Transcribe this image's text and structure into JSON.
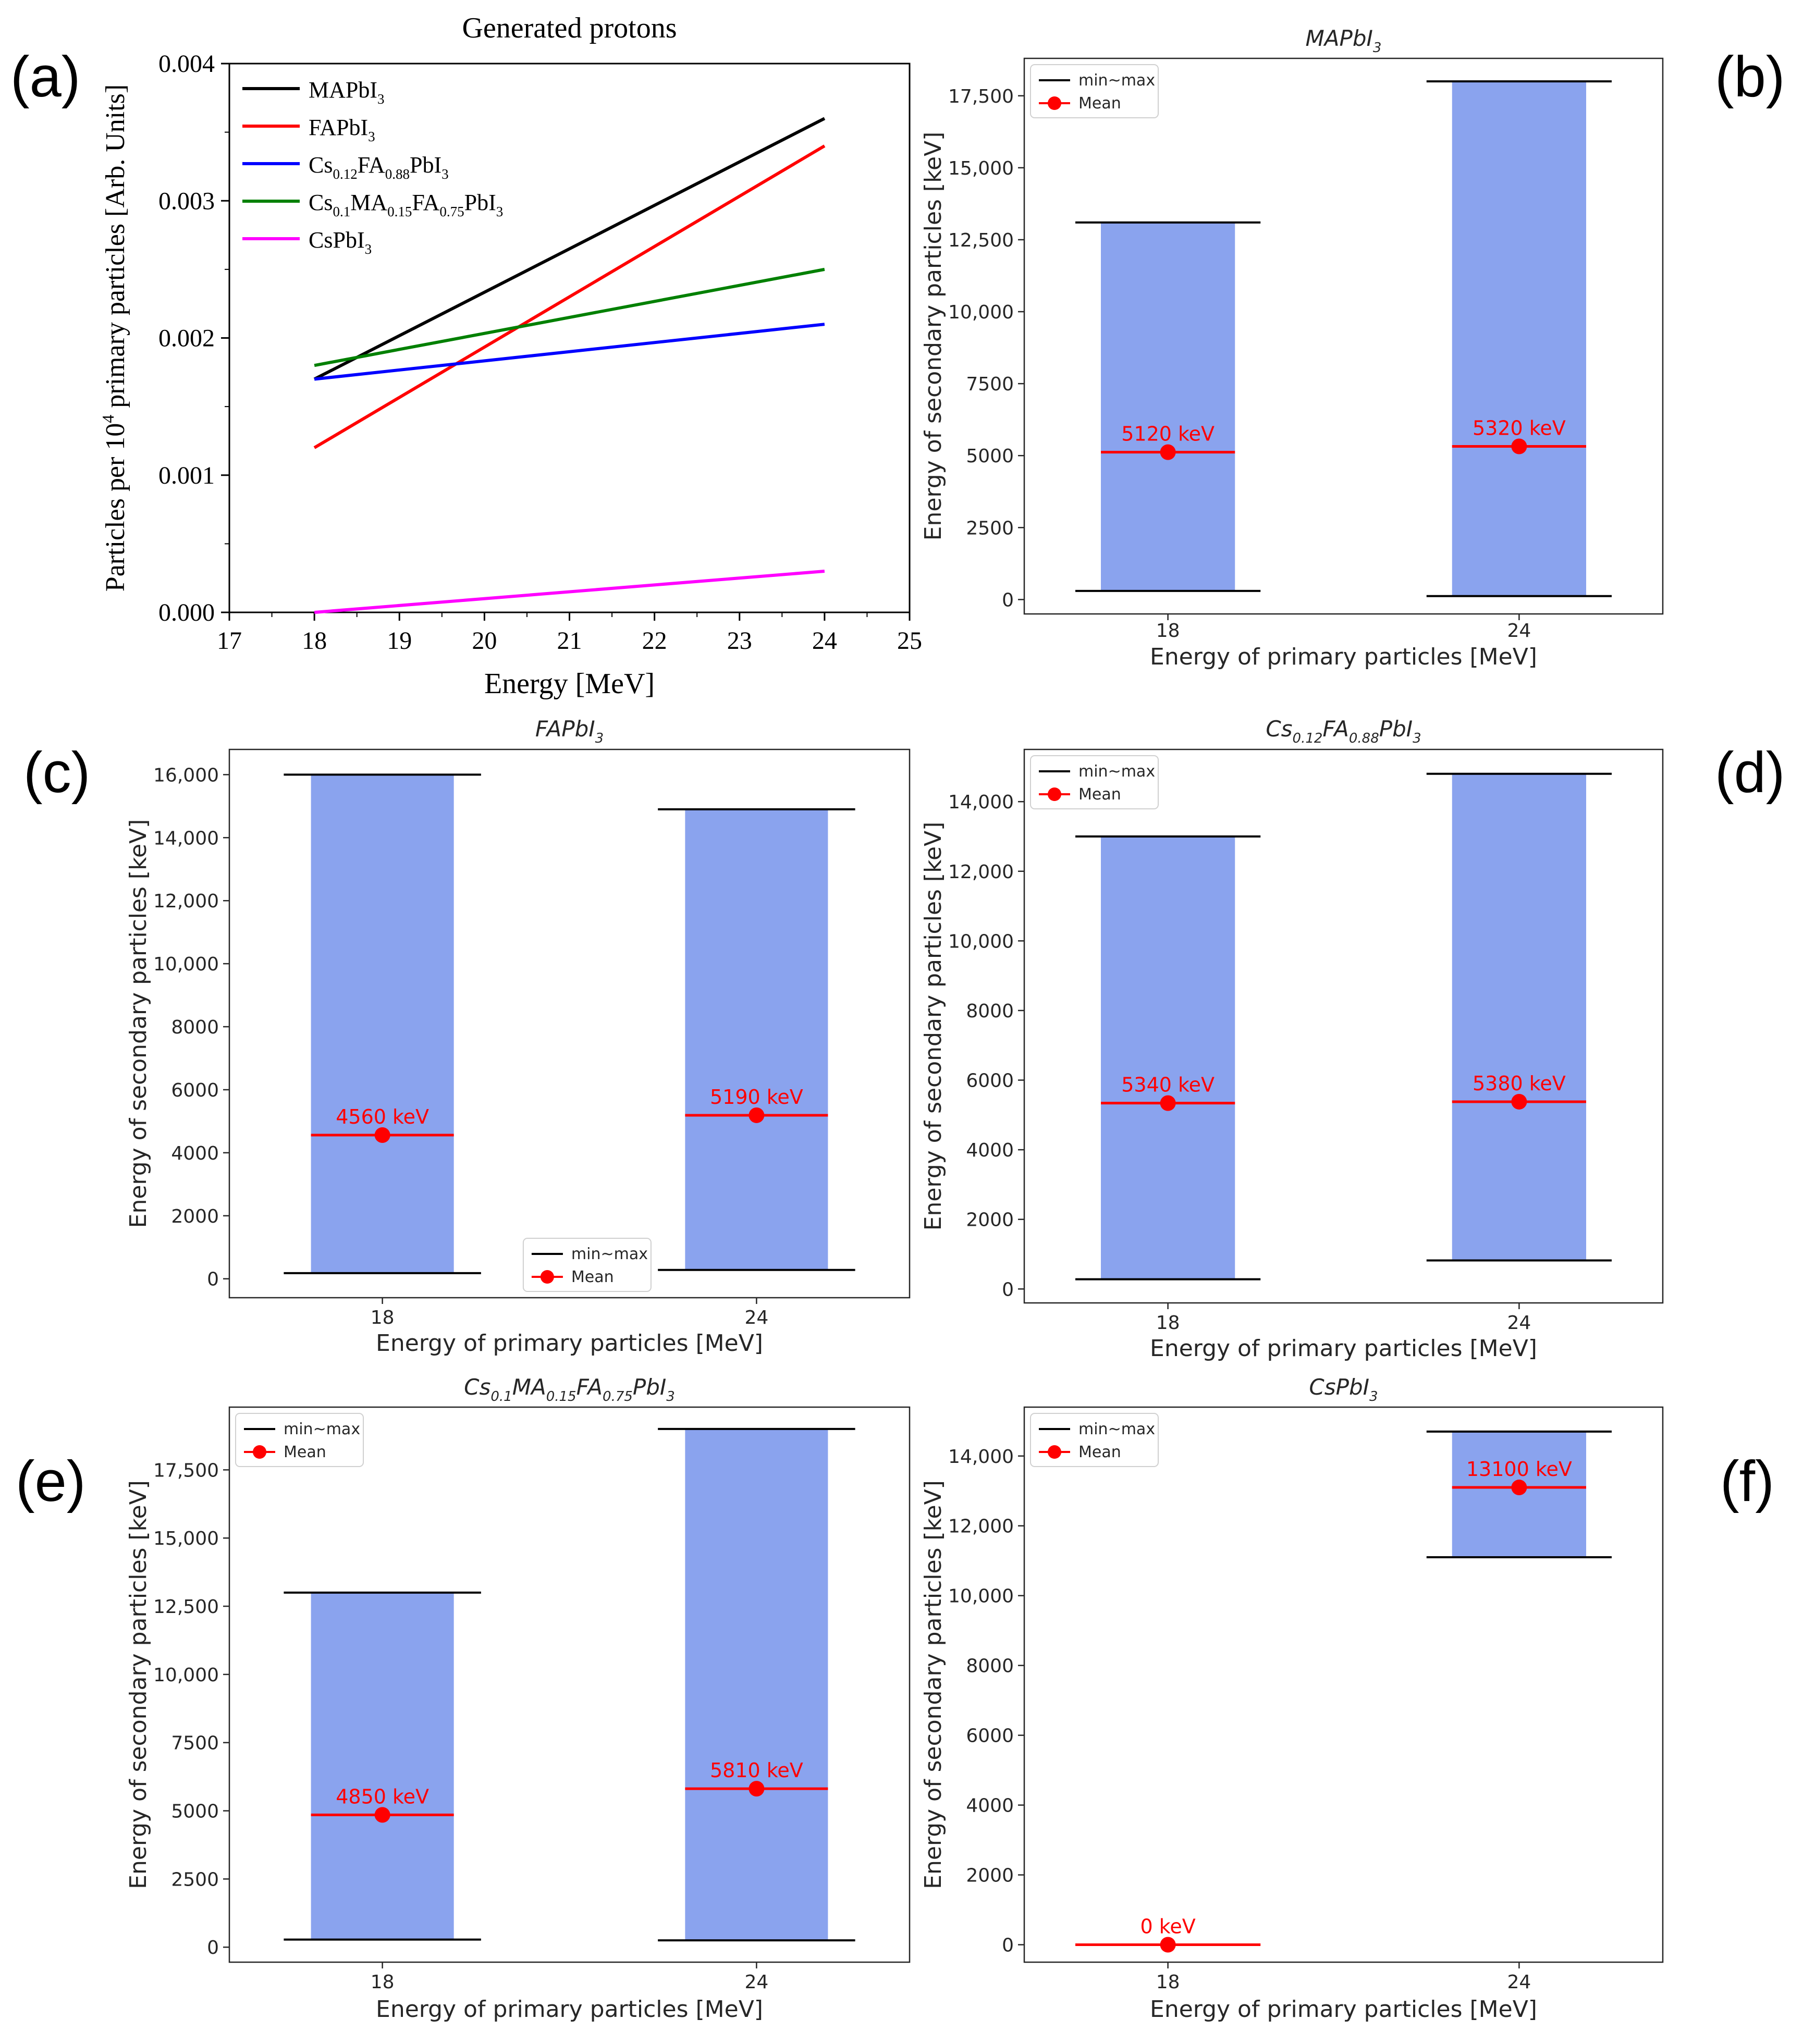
{
  "panel_letters": [
    "(a)",
    "(b)",
    "(c)",
    "(d)",
    "(e)",
    "(f)"
  ],
  "chart_data": [
    {
      "id": "a",
      "type": "line",
      "title": "Generated protons",
      "xlabel": "Energy [MeV]",
      "ylabel_parts": [
        "Particles per 10",
        "4",
        " primary particles [Arb. Units]"
      ],
      "xlim": [
        17,
        25
      ],
      "ylim": [
        0,
        0.004
      ],
      "xticks": [
        "17",
        "18",
        "19",
        "20",
        "21",
        "22",
        "23",
        "24",
        "25"
      ],
      "xtick_values": [
        17,
        18,
        19,
        20,
        21,
        22,
        23,
        24,
        25
      ],
      "yticks": [
        "0.000",
        "0.001",
        "0.002",
        "0.003",
        "0.004"
      ],
      "ytick_values": [
        0,
        0.001,
        0.002,
        0.003,
        0.004
      ],
      "x": [
        18,
        24
      ],
      "series": [
        {
          "name": "MAPbI3",
          "label_parts": [
            [
              "MAPbI",
              ""
            ],
            [
              "3",
              "sub"
            ]
          ],
          "color": "#000000",
          "values": [
            0.0017,
            0.0036
          ]
        },
        {
          "name": "FAPbI3",
          "label_parts": [
            [
              "FAPbI",
              ""
            ],
            [
              "3",
              "sub"
            ]
          ],
          "color": "#ff0000",
          "values": [
            0.0012,
            0.0034
          ]
        },
        {
          "name": "Cs0.12FA0.88PbI3",
          "label_parts": [
            [
              "Cs",
              ""
            ],
            [
              "0.12",
              "sub"
            ],
            [
              "FA",
              ""
            ],
            [
              "0.88",
              "sub"
            ],
            [
              "PbI",
              ""
            ],
            [
              "3",
              "sub"
            ]
          ],
          "color": "#0000ff",
          "values": [
            0.0017,
            0.0021
          ]
        },
        {
          "name": "Cs0.1MA0.15FA0.75PbI3",
          "label_parts": [
            [
              "Cs",
              ""
            ],
            [
              "0.1",
              "sub"
            ],
            [
              "MA",
              ""
            ],
            [
              "0.15",
              "sub"
            ],
            [
              "FA",
              ""
            ],
            [
              "0.75",
              "sub"
            ],
            [
              "PbI",
              ""
            ],
            [
              "3",
              "sub"
            ]
          ],
          "color": "#008000",
          "values": [
            0.0018,
            0.0025
          ]
        },
        {
          "name": "CsPbI3",
          "label_parts": [
            [
              "CsPbI",
              ""
            ],
            [
              "3",
              "sub"
            ]
          ],
          "color": "#ff00ff",
          "values": [
            0.0,
            0.0003
          ]
        }
      ]
    },
    {
      "id": "b",
      "type": "bar",
      "title_parts": [
        [
          "MAPbI",
          ""
        ],
        [
          "3",
          "sub"
        ]
      ],
      "xlabel": "Energy of primary particles [MeV]",
      "ylabel": "Energy of secondary particles [keV]",
      "categories": [
        "18",
        "24"
      ],
      "min": [
        300,
        120
      ],
      "max": [
        13100,
        18000
      ],
      "mean": [
        5120,
        5320
      ],
      "mean_labels": [
        "5120 keV",
        "5320 keV"
      ],
      "ylim": [
        -500,
        18800
      ],
      "yticks": [
        "0",
        "2500",
        "5000",
        "7500",
        "10,000",
        "12,500",
        "15,000",
        "17,500"
      ],
      "ytick_values": [
        0,
        2500,
        5000,
        7500,
        10000,
        12500,
        15000,
        17500
      ],
      "legend": {
        "minmax": "min~max",
        "mean": "Mean",
        "position": "upper left"
      }
    },
    {
      "id": "c",
      "type": "bar",
      "title_parts": [
        [
          "FAPbI",
          ""
        ],
        [
          "3",
          "sub"
        ]
      ],
      "xlabel": "Energy of primary particles [MeV]",
      "ylabel": "Energy of secondary particles [keV]",
      "categories": [
        "18",
        "24"
      ],
      "min": [
        180,
        280
      ],
      "max": [
        16000,
        14900
      ],
      "mean": [
        4560,
        5190
      ],
      "mean_labels": [
        "4560 keV",
        "5190 keV"
      ],
      "ylim": [
        -600,
        16800
      ],
      "yticks": [
        "0",
        "2000",
        "4000",
        "6000",
        "8000",
        "10,000",
        "12,000",
        "14,000",
        "16,000"
      ],
      "ytick_values": [
        0,
        2000,
        4000,
        6000,
        8000,
        10000,
        12000,
        14000,
        16000
      ],
      "legend": {
        "minmax": "min~max",
        "mean": "Mean",
        "position": "lower center"
      }
    },
    {
      "id": "d",
      "type": "bar",
      "title_parts": [
        [
          "Cs",
          ""
        ],
        [
          "0.12",
          "sub"
        ],
        [
          "FA",
          ""
        ],
        [
          "0.88",
          "sub"
        ],
        [
          "PbI",
          ""
        ],
        [
          "3",
          "sub"
        ]
      ],
      "xlabel": "Energy of primary particles [MeV]",
      "ylabel": "Energy of secondary particles [keV]",
      "categories": [
        "18",
        "24"
      ],
      "min": [
        280,
        820
      ],
      "max": [
        13000,
        14800
      ],
      "mean": [
        5340,
        5380
      ],
      "mean_labels": [
        "5340 keV",
        "5380 keV"
      ],
      "ylim": [
        -400,
        15500
      ],
      "yticks": [
        "0",
        "2000",
        "4000",
        "6000",
        "8000",
        "10,000",
        "12,000",
        "14,000"
      ],
      "ytick_values": [
        0,
        2000,
        4000,
        6000,
        8000,
        10000,
        12000,
        14000
      ],
      "legend": {
        "minmax": "min~max",
        "mean": "Mean",
        "position": "upper left"
      }
    },
    {
      "id": "e",
      "type": "bar",
      "title_parts": [
        [
          "Cs",
          ""
        ],
        [
          "0.1",
          "sub"
        ],
        [
          "MA",
          ""
        ],
        [
          "0.15",
          "sub"
        ],
        [
          "FA",
          ""
        ],
        [
          "0.75",
          "sub"
        ],
        [
          "PbI",
          ""
        ],
        [
          "3",
          "sub"
        ]
      ],
      "xlabel": "Energy of primary particles [MeV]",
      "ylabel": "Energy of secondary particles [keV]",
      "categories": [
        "18",
        "24"
      ],
      "min": [
        280,
        250
      ],
      "max": [
        13000,
        19000
      ],
      "mean": [
        4850,
        5810
      ],
      "mean_labels": [
        "4850 keV",
        "5810 keV"
      ],
      "ylim": [
        -550,
        19800
      ],
      "yticks": [
        "0",
        "2500",
        "5000",
        "7500",
        "10,000",
        "12,500",
        "15,000",
        "17,500"
      ],
      "ytick_values": [
        0,
        2500,
        5000,
        7500,
        10000,
        12500,
        15000,
        17500
      ],
      "legend": {
        "minmax": "min~max",
        "mean": "Mean",
        "position": "upper left"
      }
    },
    {
      "id": "f",
      "type": "bar",
      "title_parts": [
        [
          "CsPbI",
          ""
        ],
        [
          "3",
          "sub"
        ]
      ],
      "xlabel": "Energy of primary particles [MeV]",
      "ylabel": "Energy of secondary particles [keV]",
      "categories": [
        "18",
        "24"
      ],
      "min": [
        0,
        11100
      ],
      "max": [
        0,
        14700
      ],
      "mean": [
        0,
        13100
      ],
      "mean_labels": [
        "0 keV",
        "13100 keV"
      ],
      "ylim": [
        -500,
        15400
      ],
      "yticks": [
        "0",
        "2000",
        "4000",
        "6000",
        "8000",
        "10,000",
        "12,000",
        "14,000"
      ],
      "ytick_values": [
        0,
        2000,
        4000,
        6000,
        8000,
        10000,
        12000,
        14000
      ],
      "legend": {
        "minmax": "min~max",
        "mean": "Mean",
        "position": "upper left"
      }
    }
  ],
  "colors": {
    "bar_fill": "#8aa3ee",
    "mean_line": "#ff0000",
    "mean_dot": "#ff0000",
    "minmax_line": "#000000"
  }
}
